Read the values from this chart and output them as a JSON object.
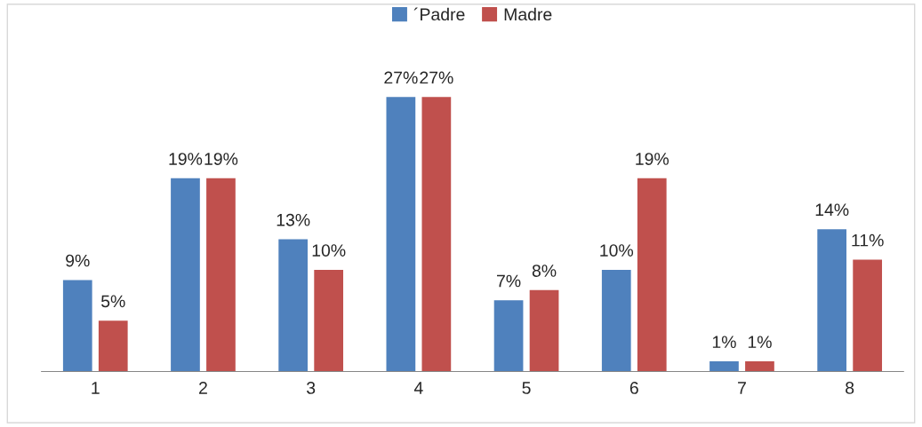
{
  "chart_data": {
    "type": "bar",
    "categories": [
      "1",
      "2",
      "3",
      "4",
      "5",
      "6",
      "7",
      "8"
    ],
    "series": [
      {
        "name": "´Padre",
        "color": "#4f81bd",
        "values": [
          9,
          19,
          13,
          27,
          7,
          10,
          1,
          14
        ],
        "value_labels": [
          "9%",
          "19%",
          "13%",
          "27%",
          "7%",
          "10%",
          "1%",
          "14%"
        ]
      },
      {
        "name": "Madre",
        "color": "#c0504d",
        "values": [
          5,
          19,
          10,
          27,
          8,
          19,
          1,
          11
        ],
        "value_labels": [
          "5%",
          "19%",
          "10%",
          "27%",
          "8%",
          "19%",
          "1%",
          "11%"
        ]
      }
    ],
    "legend": "top",
    "grid": false
  }
}
